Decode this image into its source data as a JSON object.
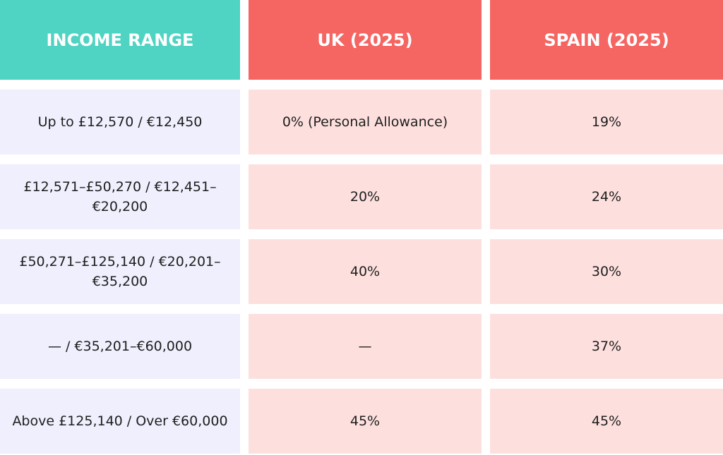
{
  "table": {
    "header": [
      "INCOME RANGE",
      "UK (2025)",
      "SPAIN (2025)"
    ],
    "rows": [
      [
        "Up to £12,570 / €12,450",
        "0% (Personal Allowance)",
        "19%"
      ],
      [
        "£12,571–£50,270 / €12,451–€20,200",
        "20%",
        "24%"
      ],
      [
        "£50,271–£125,140 / €20,201–€35,200",
        "40%",
        "30%"
      ],
      [
        "— / €35,201–€60,000",
        "—",
        "37%"
      ],
      [
        "Above £125,140 / Over €60,000",
        "45%",
        "45%"
      ]
    ]
  }
}
